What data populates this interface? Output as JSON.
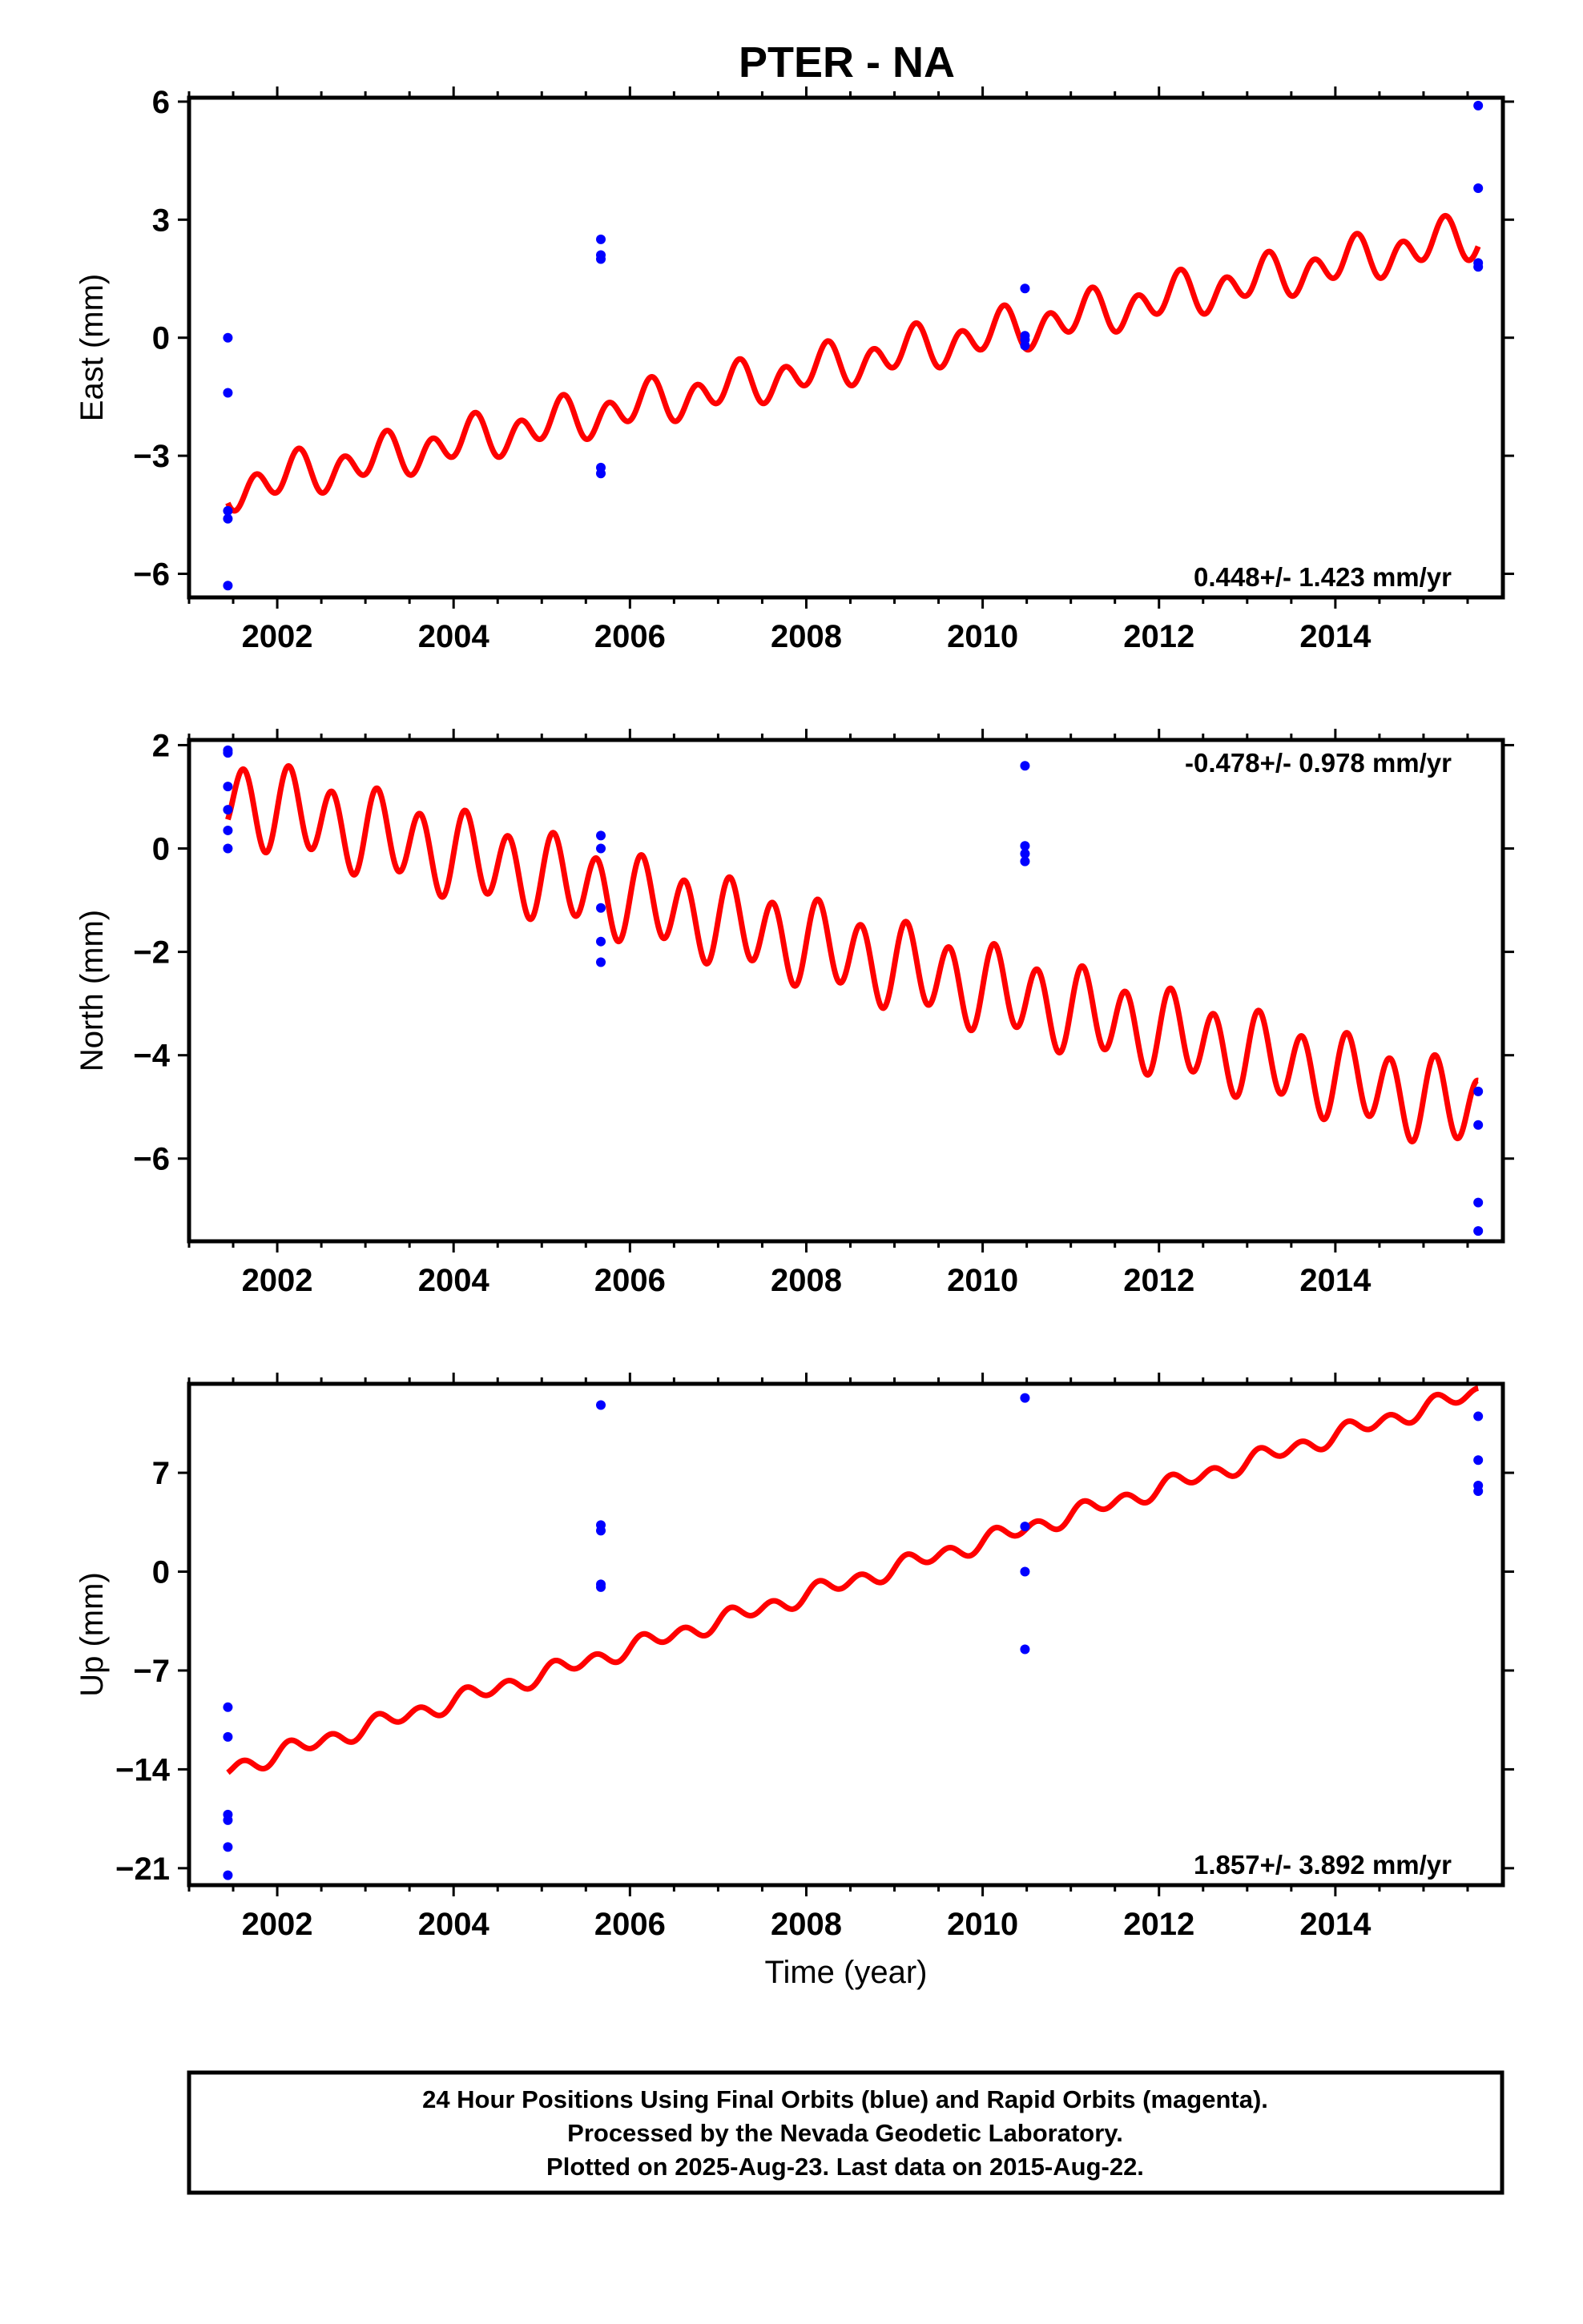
{
  "title": "PTER - NA",
  "colors": {
    "final": "#0000ff",
    "model": "#ff0000",
    "frame": "#000000"
  },
  "chart_data": [
    {
      "type": "scatter",
      "name": "east",
      "ylabel": "East (mm)",
      "xlim": [
        2001.0,
        2015.9
      ],
      "ylim": [
        -6.6,
        6.1
      ],
      "yticks": [
        6,
        3,
        0,
        -3,
        -6
      ],
      "ytick_labels": [
        "6",
        "3",
        "0",
        "−3",
        "−6"
      ],
      "xticks": [
        2002,
        2004,
        2006,
        2008,
        2010,
        2012,
        2014
      ],
      "xtick_labels": [
        "2002",
        "2004",
        "2006",
        "2008",
        "2010",
        "2012",
        "2014"
      ],
      "rate_label": "0.448+/- 1.423 mm/yr",
      "rate_position": "bottom-right",
      "points": [
        [
          2001.44,
          0.0
        ],
        [
          2001.44,
          -1.4
        ],
        [
          2001.44,
          -4.4
        ],
        [
          2001.44,
          -4.6
        ],
        [
          2001.44,
          -6.3
        ],
        [
          2005.67,
          2.5
        ],
        [
          2005.67,
          2.1
        ],
        [
          2005.67,
          2.0
        ],
        [
          2005.67,
          -3.3
        ],
        [
          2005.67,
          -3.45
        ],
        [
          2010.48,
          1.25
        ],
        [
          2010.48,
          0.05
        ],
        [
          2010.48,
          -0.05
        ],
        [
          2010.48,
          -0.2
        ],
        [
          2015.62,
          5.9
        ],
        [
          2015.62,
          3.8
        ],
        [
          2015.62,
          1.9
        ],
        [
          2015.62,
          1.8
        ]
      ],
      "model": {
        "start": 2001.44,
        "end": 2015.62,
        "y_start": -3.85,
        "y_end": 2.6,
        "annual_amp": 0.25,
        "annual_phase": 0.5,
        "semiannual_amp": 0.45,
        "semiannual_phase": -1.6
      }
    },
    {
      "type": "scatter",
      "name": "north",
      "ylabel": "North (mm)",
      "xlim": [
        2001.0,
        2015.9
      ],
      "ylim": [
        -7.6,
        2.1
      ],
      "yticks": [
        2,
        0,
        -2,
        -4,
        -6
      ],
      "ytick_labels": [
        "2",
        "0",
        "−2",
        "−4",
        "−6"
      ],
      "xticks": [
        2002,
        2004,
        2006,
        2008,
        2010,
        2012,
        2014
      ],
      "xtick_labels": [
        "2002",
        "2004",
        "2006",
        "2008",
        "2010",
        "2012",
        "2014"
      ],
      "rate_label": "-0.478+/- 0.978 mm/yr",
      "rate_position": "top-right",
      "points": [
        [
          2001.44,
          1.9
        ],
        [
          2001.44,
          1.85
        ],
        [
          2001.44,
          1.2
        ],
        [
          2001.44,
          0.75
        ],
        [
          2001.44,
          0.35
        ],
        [
          2001.44,
          0.0
        ],
        [
          2005.67,
          0.25
        ],
        [
          2005.67,
          0.0
        ],
        [
          2005.67,
          -1.15
        ],
        [
          2005.67,
          -1.8
        ],
        [
          2005.67,
          -2.2
        ],
        [
          2010.48,
          1.6
        ],
        [
          2010.48,
          0.05
        ],
        [
          2010.48,
          -0.1
        ],
        [
          2010.48,
          -0.25
        ],
        [
          2015.62,
          -4.7
        ],
        [
          2015.62,
          -5.35
        ],
        [
          2015.62,
          -6.85
        ],
        [
          2015.62,
          -7.4
        ]
      ],
      "model": {
        "start": 2001.44,
        "end": 2015.62,
        "y_start": 1.0,
        "y_end": -5.1,
        "annual_amp": 0.2,
        "annual_phase": 0.0,
        "semiannual_amp": 0.75,
        "semiannual_phase": 0.0
      }
    },
    {
      "type": "scatter",
      "name": "up",
      "ylabel": "Up (mm)",
      "xlabel": "Time (year)",
      "xlim": [
        2001.0,
        2015.9
      ],
      "ylim": [
        -22.2,
        13.3
      ],
      "yticks": [
        7,
        0,
        -7,
        -14,
        -21
      ],
      "ytick_labels": [
        "7",
        "0",
        "−7",
        "−14",
        "−21"
      ],
      "xticks": [
        2002,
        2004,
        2006,
        2008,
        2010,
        2012,
        2014
      ],
      "xtick_labels": [
        "2002",
        "2004",
        "2006",
        "2008",
        "2010",
        "2012",
        "2014"
      ],
      "rate_label": "1.857+/- 3.892 mm/yr",
      "rate_position": "bottom-right",
      "points": [
        [
          2001.44,
          -9.6
        ],
        [
          2001.44,
          -11.7
        ],
        [
          2001.44,
          -17.2
        ],
        [
          2001.44,
          -17.6
        ],
        [
          2001.44,
          -19.5
        ],
        [
          2001.44,
          -21.5
        ],
        [
          2005.67,
          11.8
        ],
        [
          2005.67,
          3.3
        ],
        [
          2005.67,
          2.9
        ],
        [
          2005.67,
          -0.9
        ],
        [
          2005.67,
          -1.1
        ],
        [
          2010.48,
          12.3
        ],
        [
          2010.48,
          3.2
        ],
        [
          2010.48,
          0.0
        ],
        [
          2010.48,
          -5.5
        ],
        [
          2015.62,
          11.0
        ],
        [
          2015.62,
          7.9
        ],
        [
          2015.62,
          6.1
        ],
        [
          2015.62,
          5.7
        ]
      ],
      "model": {
        "start": 2001.44,
        "end": 2015.62,
        "y_start": -14.0,
        "y_end": 12.7,
        "annual_amp": 0.3,
        "annual_phase": 0.0,
        "semiannual_amp": 0.5,
        "semiannual_phase": 0.0
      }
    }
  ],
  "footer": {
    "line1": "24 Hour Positions Using Final Orbits (blue) and Rapid Orbits (magenta).",
    "line2": "Processed by the Nevada Geodetic Laboratory.",
    "line3": "Plotted on 2025-Aug-23. Last data on 2015-Aug-22."
  }
}
